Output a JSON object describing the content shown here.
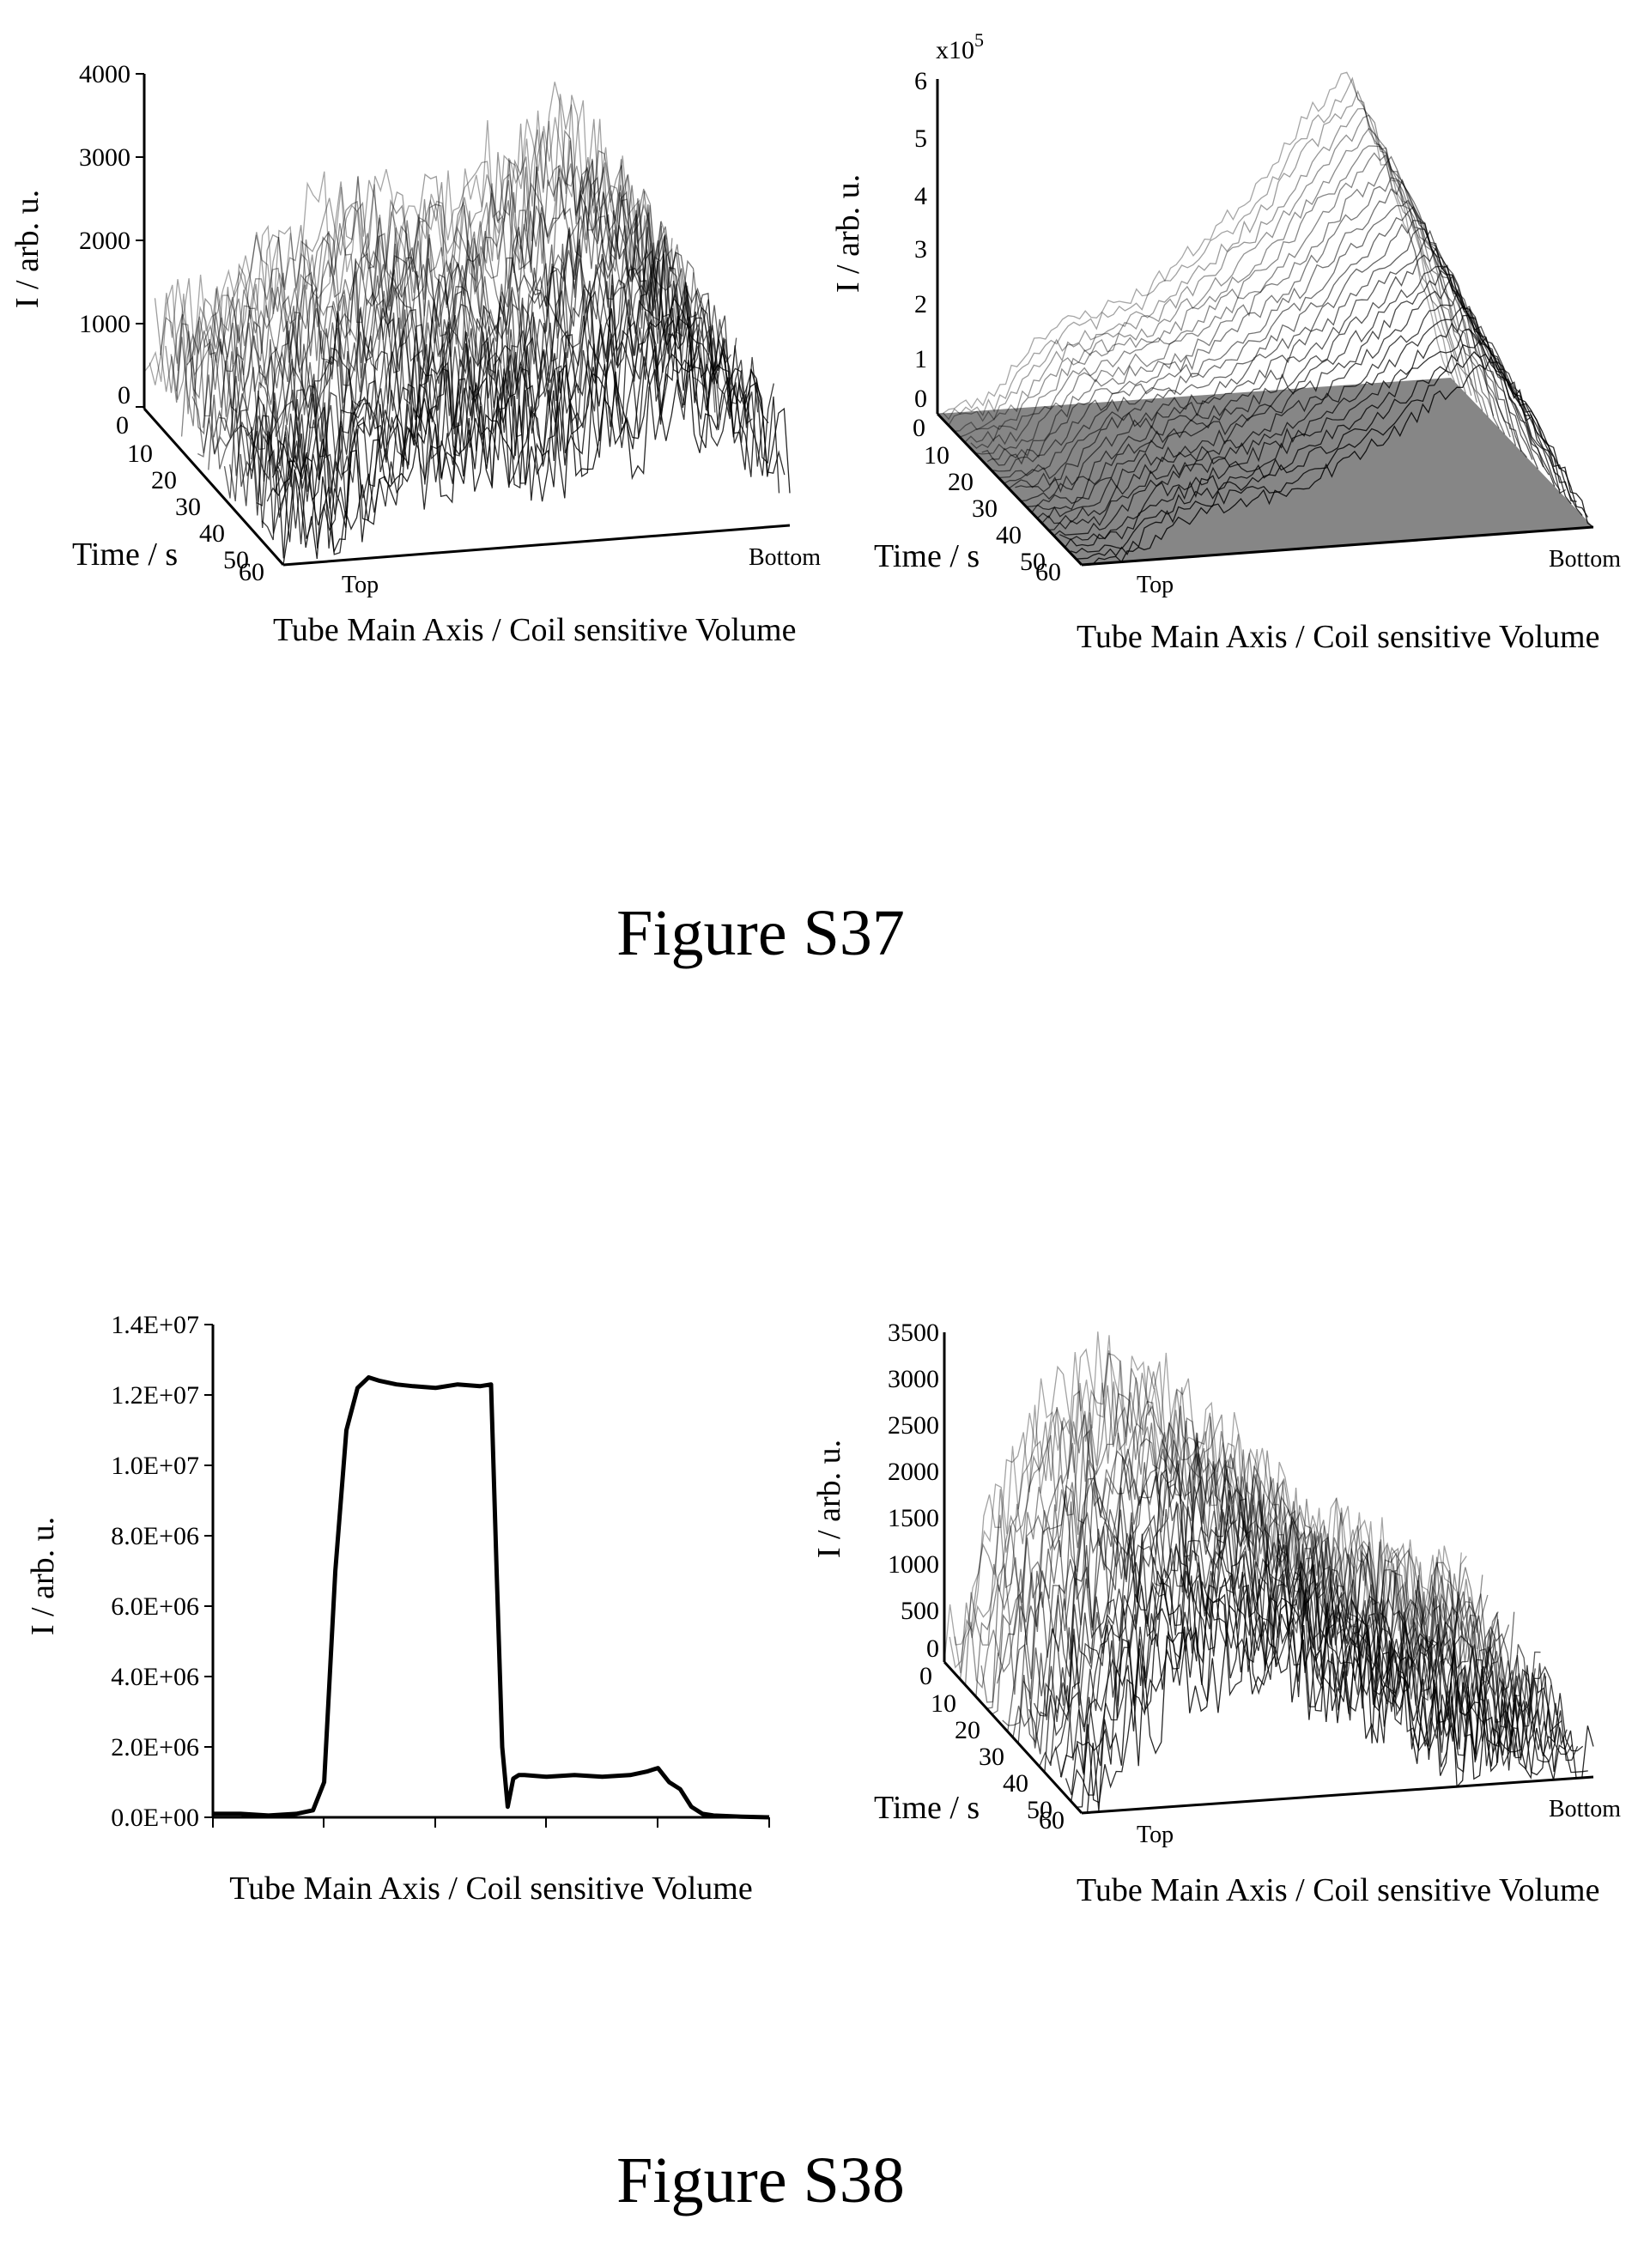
{
  "captions": {
    "s37": "Figure S37",
    "s38": "Figure S38"
  },
  "chart_data": [
    {
      "id": "s37_left",
      "type": "surface3d",
      "ylabel": "I / arb. u.",
      "time_label": "Time / s",
      "xlabel": "Tube Main Axis / Coil sensitive Volume",
      "x_start_label": "Top",
      "x_end_label": "Bottom",
      "z_ticks": [
        "0",
        "1000",
        "2000",
        "3000",
        "4000"
      ],
      "zlim": [
        0,
        4000
      ],
      "time_ticks": [
        "0",
        "10",
        "20",
        "30",
        "40",
        "50",
        "60"
      ],
      "timelim": [
        0,
        60
      ],
      "x": [
        0,
        0.1,
        0.2,
        0.3,
        0.4,
        0.5,
        0.6,
        0.7,
        0.8,
        0.9,
        1.0
      ],
      "profile": [
        800,
        1100,
        1500,
        1900,
        2100,
        2000,
        2200,
        2500,
        3000,
        2400,
        1300
      ],
      "noise": 700,
      "colors": {
        "mesh": "#000000"
      }
    },
    {
      "id": "s37_right",
      "type": "surface3d",
      "ylabel": "I / arb. u.",
      "time_label": "Time / s",
      "xlabel": "Tube Main Axis / Coil sensitive Volume",
      "x_start_label": "Top",
      "x_end_label": "Bottom",
      "z_multiplier": "x10",
      "z_multiplier_exp": "5",
      "z_ticks": [
        "0",
        "1",
        "2",
        "3",
        "4",
        "5",
        "6"
      ],
      "zlim": [
        0,
        6
      ],
      "time_ticks": [
        "0",
        "10",
        "20",
        "30",
        "40",
        "50",
        "60"
      ],
      "timelim": [
        0,
        60
      ],
      "x": [
        0,
        0.1,
        0.2,
        0.3,
        0.4,
        0.5,
        0.6,
        0.7,
        0.8,
        0.9,
        1.0
      ],
      "profile": [
        0,
        0.2,
        1.3,
        1.6,
        1.9,
        2.6,
        3.4,
        4.6,
        5.6,
        3.2,
        0
      ],
      "noise": 0.15,
      "colors": {
        "mesh": "#000000",
        "floor": "#333333"
      }
    },
    {
      "id": "s38_left",
      "type": "line",
      "ylabel": "I / arb. u.",
      "xlabel": "Tube Main Axis / Coil sensitive Volume",
      "y_ticks": [
        "0.0E+00",
        "2.0E+06",
        "4.0E+06",
        "6.0E+06",
        "8.0E+06",
        "1.0E+07",
        "1.2E+07",
        "1.4E+07"
      ],
      "ylim": [
        0,
        14000000
      ],
      "xlim": [
        0,
        100
      ],
      "series": [
        {
          "x": [
            0,
            5,
            10,
            15,
            18,
            20,
            22,
            24,
            26,
            28,
            30,
            33,
            36,
            40,
            44,
            48,
            50,
            51,
            52,
            53,
            54,
            55,
            56,
            60,
            65,
            70,
            75,
            78,
            80,
            82,
            84,
            86,
            88,
            90,
            95,
            100
          ],
          "values": [
            100000,
            100000,
            50000,
            100000,
            200000,
            1000000,
            7000000,
            11000000,
            12200000,
            12500000,
            12400000,
            12300000,
            12250000,
            12200000,
            12300000,
            12250000,
            12300000,
            7000000,
            2000000,
            300000,
            1100000,
            1200000,
            1200000,
            1150000,
            1200000,
            1150000,
            1200000,
            1300000,
            1400000,
            1000000,
            800000,
            300000,
            100000,
            50000,
            20000,
            0
          ]
        }
      ],
      "colors": {
        "line": "#000000"
      }
    },
    {
      "id": "s38_right",
      "type": "surface3d",
      "ylabel": "I / arb. u.",
      "time_label": "Time / s",
      "xlabel": "Tube Main Axis / Coil sensitive Volume",
      "x_start_label": "Top",
      "x_end_label": "Bottom",
      "z_ticks": [
        "0",
        "500",
        "1000",
        "1500",
        "2000",
        "2500",
        "3000",
        "3500"
      ],
      "zlim": [
        0,
        3500
      ],
      "time_ticks": [
        "0",
        "10",
        "20",
        "30",
        "40",
        "50",
        "60"
      ],
      "timelim": [
        0,
        60
      ],
      "x": [
        0,
        0.1,
        0.2,
        0.3,
        0.4,
        0.5,
        0.6,
        0.7,
        0.8,
        0.9,
        1.0
      ],
      "profile": [
        300,
        1600,
        2600,
        2800,
        2700,
        2200,
        1700,
        1100,
        800,
        600,
        300
      ],
      "noise": 600,
      "colors": {
        "mesh": "#000000"
      }
    }
  ]
}
